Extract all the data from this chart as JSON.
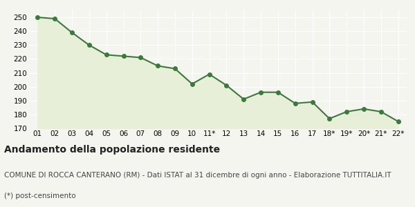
{
  "x_labels": [
    "01",
    "02",
    "03",
    "04",
    "05",
    "06",
    "07",
    "08",
    "09",
    "10",
    "11*",
    "12",
    "13",
    "14",
    "15",
    "16",
    "17",
    "18*",
    "19*",
    "20*",
    "21*",
    "22*"
  ],
  "y_values": [
    250,
    249,
    239,
    230,
    223,
    222,
    221,
    215,
    213,
    202,
    209,
    201,
    191,
    196,
    196,
    188,
    189,
    177,
    182,
    184,
    182,
    175
  ],
  "line_color": "#3a7a3a",
  "fill_color": "#e8efd8",
  "marker": "o",
  "marker_size": 4,
  "line_width": 1.5,
  "ylim": [
    170,
    255
  ],
  "yticks": [
    170,
    180,
    190,
    200,
    210,
    220,
    230,
    240,
    250
  ],
  "background_color": "#f5f5f0",
  "title": "Andamento della popolazione residente",
  "subtitle": "COMUNE DI ROCCA CANTERANO (RM) - Dati ISTAT al 31 dicembre di ogni anno - Elaborazione TUTTITALIA.IT",
  "footnote": "(*) post-censimento",
  "title_fontsize": 10,
  "subtitle_fontsize": 7.5,
  "footnote_fontsize": 7.5,
  "tick_fontsize": 7.5
}
